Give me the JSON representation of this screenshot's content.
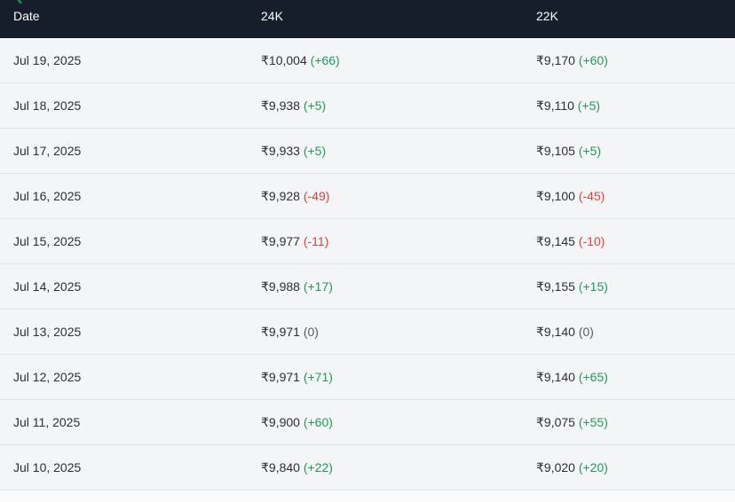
{
  "header": {
    "col_date": "Date",
    "col_24k": "24K",
    "col_22k": "22K"
  },
  "colors": {
    "header_bg": "#161d2b",
    "positive": "#1f9a5b",
    "negative": "#e0413c",
    "neutral": "#555b63",
    "row_bg": "#f4f5f7"
  },
  "icons": {
    "back": "chevron-left-icon"
  },
  "rows": [
    {
      "date": "Jul 19, 2025",
      "p24": "₹10,004",
      "c24": "(+66)",
      "t24": "up",
      "p22": "₹9,170",
      "c22": "(+60)",
      "t22": "up"
    },
    {
      "date": "Jul 18, 2025",
      "p24": "₹9,938",
      "c24": "(+5)",
      "t24": "up",
      "p22": "₹9,110",
      "c22": "(+5)",
      "t22": "up"
    },
    {
      "date": "Jul 17, 2025",
      "p24": "₹9,933",
      "c24": "(+5)",
      "t24": "up",
      "p22": "₹9,105",
      "c22": "(+5)",
      "t22": "up"
    },
    {
      "date": "Jul 16, 2025",
      "p24": "₹9,928",
      "c24": "(-49)",
      "t24": "down",
      "p22": "₹9,100",
      "c22": "(-45)",
      "t22": "down"
    },
    {
      "date": "Jul 15, 2025",
      "p24": "₹9,977",
      "c24": "(-11)",
      "t24": "down",
      "p22": "₹9,145",
      "c22": "(-10)",
      "t22": "down"
    },
    {
      "date": "Jul 14, 2025",
      "p24": "₹9,988",
      "c24": "(+17)",
      "t24": "up",
      "p22": "₹9,155",
      "c22": "(+15)",
      "t22": "up"
    },
    {
      "date": "Jul 13, 2025",
      "p24": "₹9,971",
      "c24": "(0)",
      "t24": "flat",
      "p22": "₹9,140",
      "c22": "(0)",
      "t22": "flat"
    },
    {
      "date": "Jul 12, 2025",
      "p24": "₹9,971",
      "c24": "(+71)",
      "t24": "up",
      "p22": "₹9,140",
      "c22": "(+65)",
      "t22": "up"
    },
    {
      "date": "Jul 11, 2025",
      "p24": "₹9,900",
      "c24": "(+60)",
      "t24": "up",
      "p22": "₹9,075",
      "c22": "(+55)",
      "t22": "up"
    },
    {
      "date": "Jul 10, 2025",
      "p24": "₹9,840",
      "c24": "(+22)",
      "t24": "up",
      "p22": "₹9,020",
      "c22": "(+20)",
      "t22": "up"
    }
  ]
}
